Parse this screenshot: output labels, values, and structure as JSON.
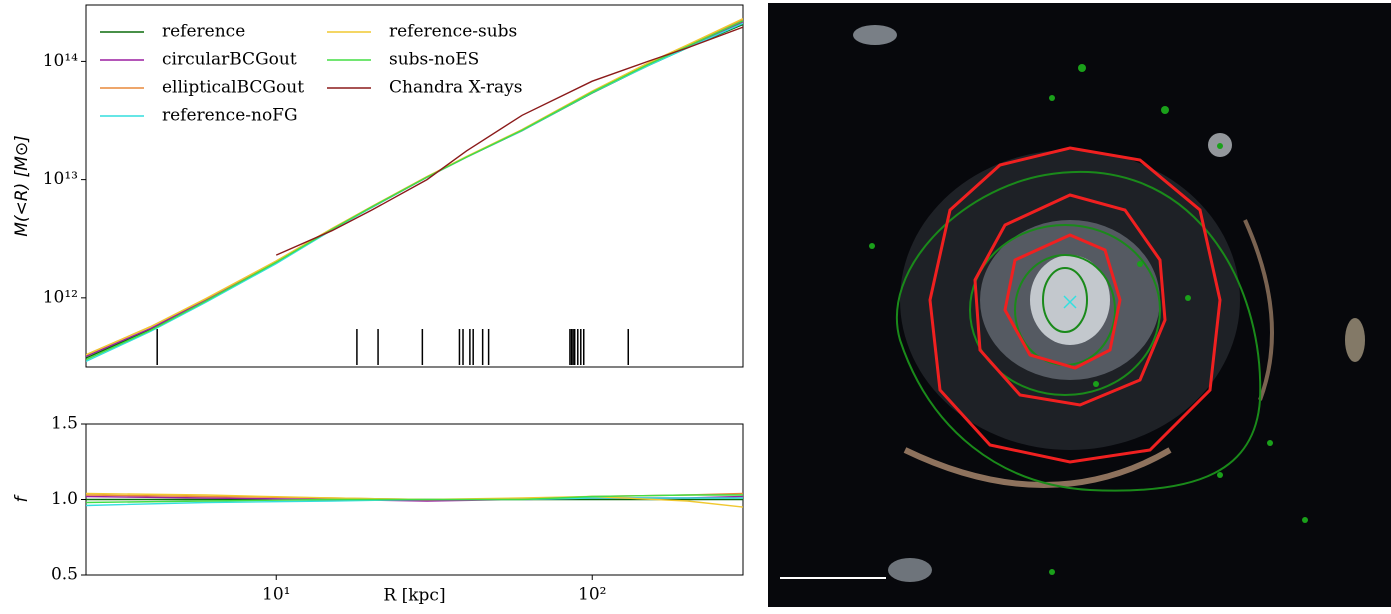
{
  "chart_data": [
    {
      "type": "line",
      "xscale": "log",
      "yscale": "log",
      "ylabel": "M(<R) [M⊙]",
      "xlim": [
        2.5,
        300
      ],
      "ylim": [
        260000000000,
        300000000000000
      ],
      "yticks": [
        {
          "value": 1000000000000,
          "label": "10¹²"
        },
        {
          "value": 10000000000000,
          "label": "10¹³"
        },
        {
          "value": 100000000000000,
          "label": "10¹⁴"
        }
      ],
      "legend": "upper left",
      "x": [
        2.5,
        4,
        6,
        10,
        15,
        20,
        30,
        40,
        60,
        100,
        150,
        200,
        300
      ],
      "series": [
        {
          "name": "reference",
          "color": "#0b6b0b",
          "values": [
            310000000000,
            540000000000,
            950000000000,
            2000000000000,
            3800000000000,
            5800000000000,
            10500000000000,
            15500000000000,
            26000000000000,
            54000000000000,
            92000000000000,
            130000000000000,
            205000000000000
          ]
        },
        {
          "name": "circularBCGout",
          "color": "#9b1fa0",
          "values": [
            320000000000,
            550000000000,
            960000000000,
            2000000000000,
            3800000000000,
            5800000000000,
            10500000000000,
            15500000000000,
            26000000000000,
            55000000000000,
            94000000000000,
            133000000000000,
            215000000000000
          ]
        },
        {
          "name": "ellipticalBCGout",
          "color": "#e8893a",
          "values": [
            330000000000,
            570000000000,
            980000000000,
            2050000000000,
            3850000000000,
            5900000000000,
            10600000000000,
            15600000000000,
            26500000000000,
            56000000000000,
            96000000000000,
            136000000000000,
            225000000000000
          ]
        },
        {
          "name": "reference-noFG",
          "color": "#33dede",
          "values": [
            290000000000,
            520000000000,
            920000000000,
            1950000000000,
            3750000000000,
            5800000000000,
            10500000000000,
            15500000000000,
            26000000000000,
            54500000000000,
            92000000000000,
            130000000000000,
            210000000000000
          ]
        },
        {
          "name": "reference-subs",
          "color": "#f0c830",
          "values": [
            330000000000,
            570000000000,
            990000000000,
            2050000000000,
            3850000000000,
            5900000000000,
            10600000000000,
            15700000000000,
            26500000000000,
            56000000000000,
            97000000000000,
            138000000000000,
            230000000000000
          ]
        },
        {
          "name": "subs-noES",
          "color": "#44dd44",
          "values": [
            300000000000,
            530000000000,
            940000000000,
            2000000000000,
            3800000000000,
            5850000000000,
            10500000000000,
            15500000000000,
            26200000000000,
            55000000000000,
            94000000000000,
            134000000000000,
            220000000000000
          ]
        },
        {
          "name": "Chandra X-rays",
          "color": "#8b1a1a",
          "values": [
            null,
            null,
            null,
            2300000000000,
            3700000000000,
            5500000000000,
            10000000000000,
            17500000000000,
            35000000000000,
            68000000000000,
            100000000000000,
            130000000000000,
            195000000000000
          ]
        }
      ],
      "rug": [
        4.2,
        18,
        21,
        29,
        38,
        39,
        41,
        42,
        45,
        47,
        85,
        86,
        87,
        88,
        90,
        92,
        94,
        130
      ]
    },
    {
      "type": "line",
      "xscale": "log",
      "xlabel": "R [kpc]",
      "ylabel": "f",
      "xlim": [
        2.5,
        300
      ],
      "ylim": [
        0.5,
        1.5
      ],
      "xticks": [
        {
          "value": 10,
          "label": "10¹"
        },
        {
          "value": 100,
          "label": "10²"
        }
      ],
      "yticks": [
        0.5,
        {
          "value": 1,
          "label": "1.0"
        },
        1.5
      ],
      "x": [
        2.5,
        6,
        15,
        30,
        60,
        100,
        200,
        300
      ],
      "series": [
        {
          "name": "reference",
          "color": "#0b6b0b",
          "values": [
            1,
            1,
            1,
            1,
            1,
            1,
            1,
            1
          ]
        },
        {
          "name": "circularBCGout",
          "color": "#9b1fa0",
          "values": [
            1.02,
            1.01,
            1,
            0.99,
            1,
            1.01,
            1.01,
            1.02
          ]
        },
        {
          "name": "ellipticalBCGout",
          "color": "#e8893a",
          "values": [
            1.03,
            1.02,
            1.01,
            1,
            1,
            1.02,
            1.03,
            1.04
          ]
        },
        {
          "name": "reference-noFG",
          "color": "#33dede",
          "values": [
            0.96,
            0.98,
            0.99,
            1,
            1,
            1.01,
            1.01,
            1.01
          ]
        },
        {
          "name": "reference-subs",
          "color": "#f0c830",
          "values": [
            1.04,
            1.03,
            1.01,
            1,
            1.01,
            1.02,
            0.99,
            0.95
          ]
        },
        {
          "name": "subs-noES",
          "color": "#44dd44",
          "values": [
            0.98,
            0.99,
            1,
            1,
            1,
            1.02,
            1.03,
            1.03
          ]
        }
      ]
    }
  ]
}
